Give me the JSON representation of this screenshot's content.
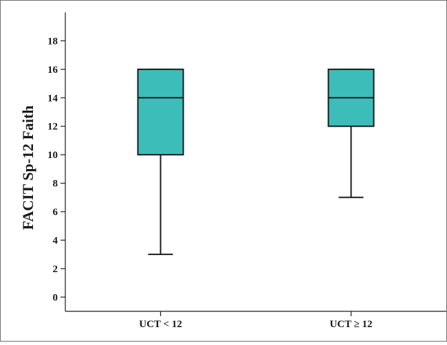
{
  "chart_data": {
    "type": "box",
    "ylabel": "FACIT Sp-12 Faith",
    "ylim": [
      -1,
      20
    ],
    "yticks": [
      0,
      2,
      4,
      6,
      8,
      10,
      12,
      14,
      16,
      18
    ],
    "categories": [
      "UCT < 12",
      "UCT ≥ 12"
    ],
    "boxes": [
      {
        "category": "UCT < 12",
        "min": 3,
        "q1": 10,
        "median": 14,
        "q3": 16,
        "max": 16
      },
      {
        "category": "UCT ≥ 12",
        "min": 7,
        "q1": 12,
        "median": 14,
        "q3": 16,
        "max": 16
      }
    ],
    "box_color": "#3dbdb9",
    "grid": false
  }
}
